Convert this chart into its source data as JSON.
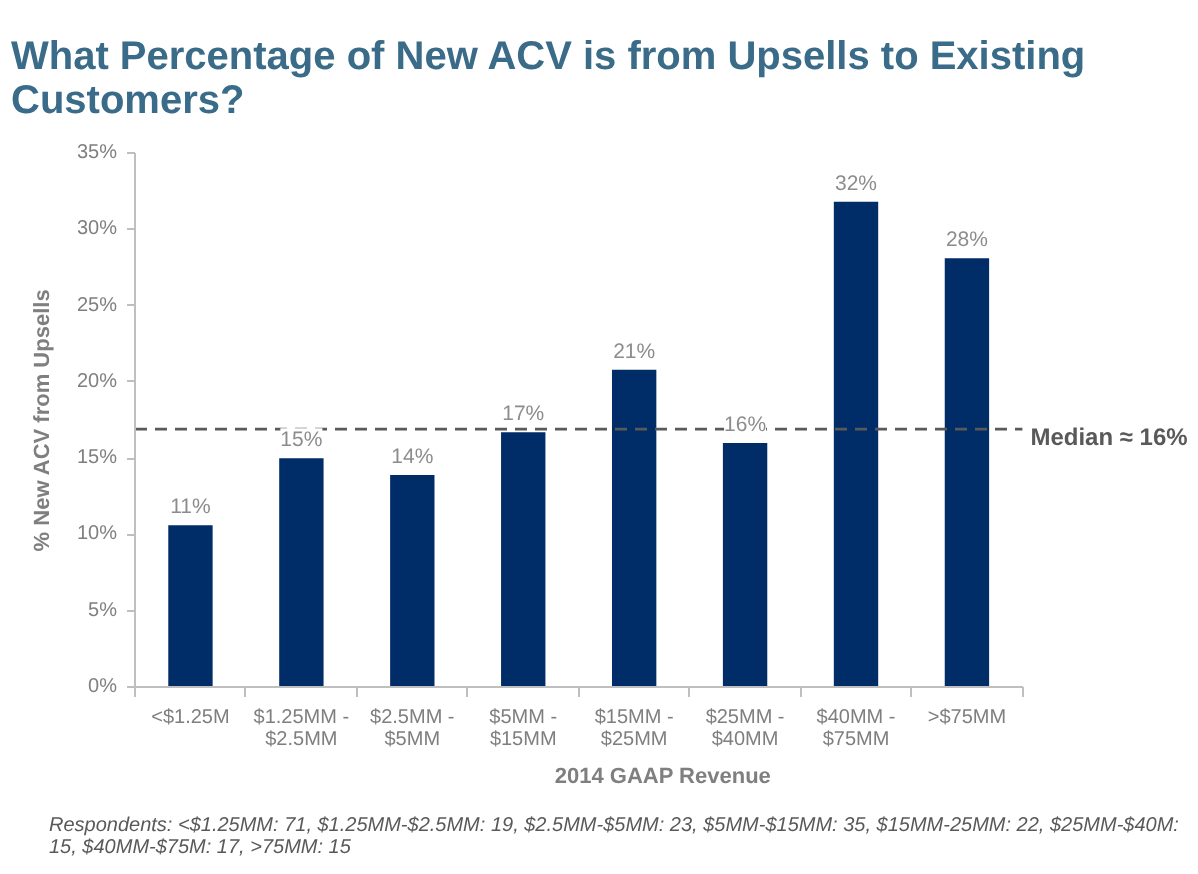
{
  "chart_data": {
    "type": "bar",
    "title": "What Percentage of New ACV is from Upsells to Existing Customers?",
    "xlabel": "2014 GAAP Revenue",
    "ylabel": "% New ACV from Upsells",
    "categories": [
      "<$1.25M",
      "$1.25MM - $2.5MM",
      "$2.5MM - $5MM",
      "$5MM - $15MM",
      "$15MM - $25MM",
      "$25MM - $40MM",
      "$40MM - $75MM",
      ">$75MM"
    ],
    "values": [
      10.6,
      15.0,
      13.9,
      16.7,
      20.8,
      16.0,
      31.8,
      28.1
    ],
    "value_labels": [
      "11%",
      "15%",
      "14%",
      "17%",
      "21%",
      "16%",
      "32%",
      "28%"
    ],
    "color": "#002d67",
    "ylim": [
      0,
      35
    ],
    "yticks": [
      {
        "value": 0,
        "label": "0%"
      },
      {
        "value": 5,
        "label": "5%"
      },
      {
        "value": 10,
        "label": "10%"
      },
      {
        "value": 15,
        "label": "15%"
      },
      {
        "value": 20,
        "label": "20%"
      },
      {
        "value": 25,
        "label": "25%"
      },
      {
        "value": 30,
        "label": "30%"
      },
      {
        "value": 35,
        "label": "35%"
      }
    ],
    "ref_lines": [
      {
        "axis": "y",
        "value": 16.9,
        "label": "Median ≈ 16%",
        "color": "#595959",
        "line_style": "dashed"
      }
    ],
    "annotations": [
      "Respondents: <$1.25MM: 71, $1.25MM-$2.5MM: 19, $2.5MM-$5MM: 23, $5MM-$15MM: 35, $15MM-25MM: 22, $25MM-$40M: 15, $40MM-$75M: 17, >75MM: 15"
    ]
  }
}
